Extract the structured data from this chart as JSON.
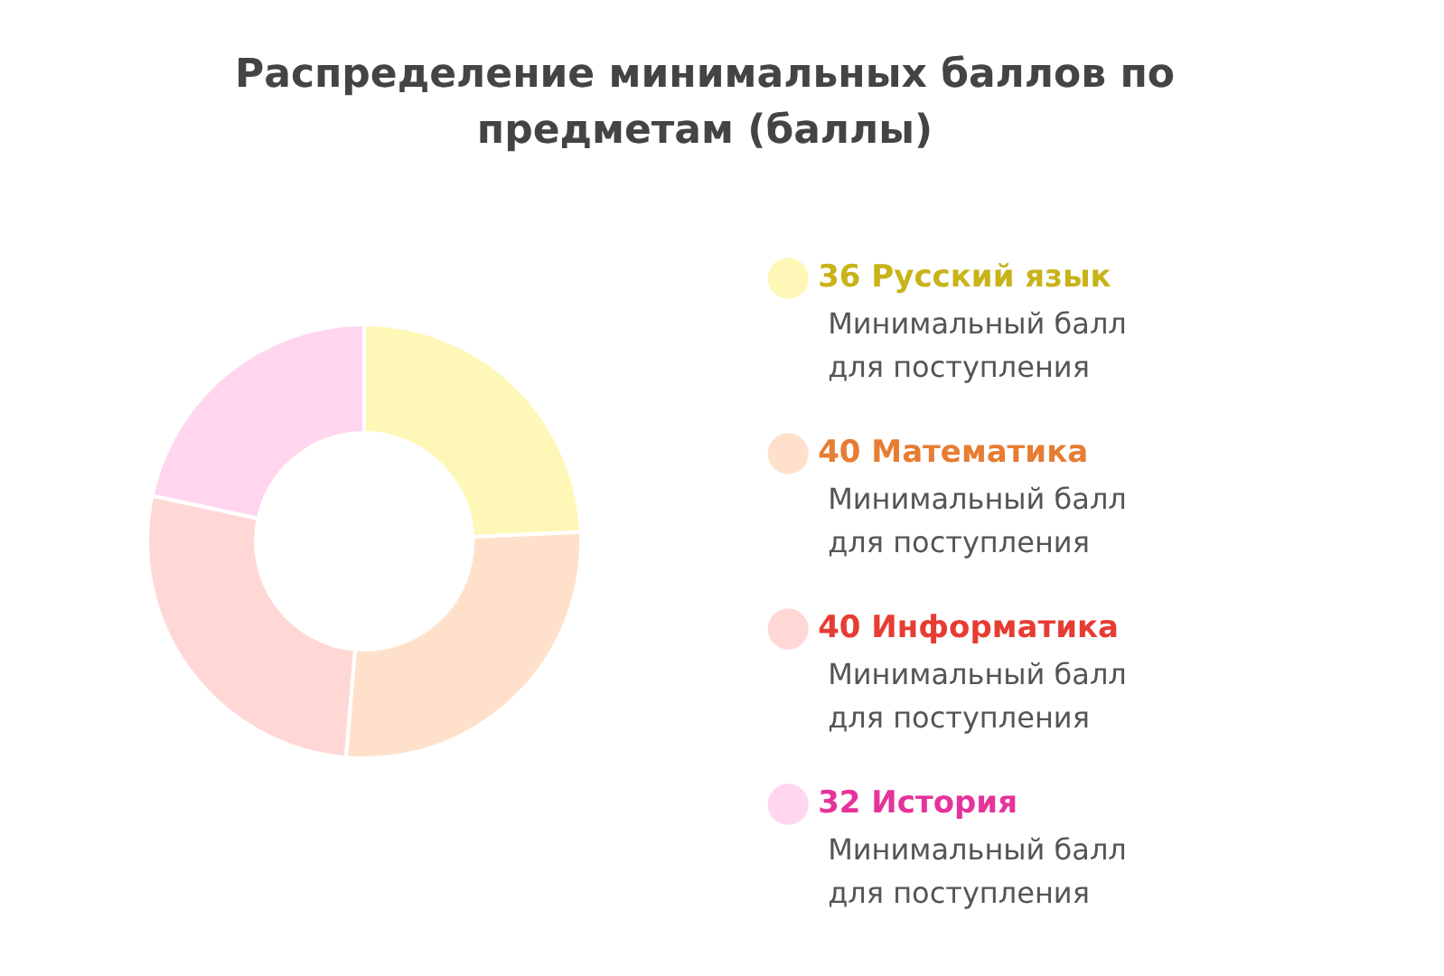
{
  "chart_data": {
    "type": "donut",
    "title": "Распределение минимальных баллов по предметам (баллы)",
    "categories": [
      "36 Русский язык",
      "40 Математика",
      "40 Информатика",
      "32 История"
    ],
    "values": [
      36,
      40,
      40,
      32
    ],
    "colors": [
      "#fff7b8",
      "#ffe1cb",
      "#ffd8d6",
      "#ffd6ee"
    ],
    "legend": "right",
    "annotations": [
      "Минимальный балл для поступления",
      "Минимальный балл для поступления",
      "Минимальный балл для поступления",
      "Минимальный балл для поступления"
    ]
  }
}
